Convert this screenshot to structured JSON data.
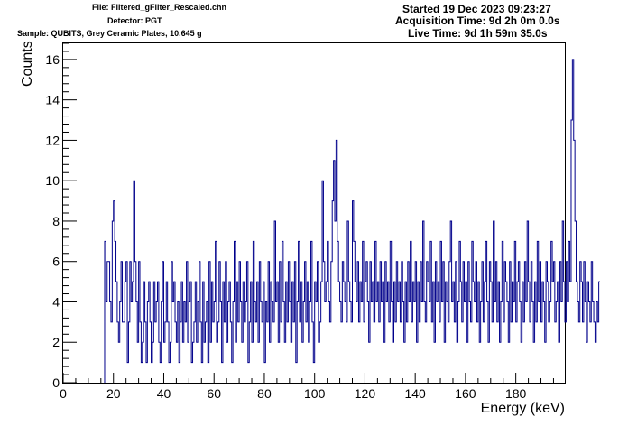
{
  "header": {
    "file": "File: Filtered_gFilter_Rescaled.chn",
    "detector": "Detector: PGT",
    "sample": "Sample: QUBITS, Grey Ceramic Plates, 10.645 g",
    "started": "Started 19 Dec 2023 09:23:27",
    "acquisition": "Acquisition Time: 9d 2h 0m 0.0s",
    "live": "Live Time: 9d 1h 59m 35.0s"
  },
  "chart_data": {
    "type": "line",
    "style": "histogram-step",
    "title": "",
    "xlabel": "Energy (keV)",
    "ylabel": "Counts",
    "xlim": [
      0,
      199.5
    ],
    "ylim": [
      0,
      16.8
    ],
    "x_ticks": [
      0,
      20,
      40,
      60,
      80,
      100,
      120,
      140,
      160,
      180
    ],
    "y_ticks": [
      0,
      2,
      4,
      6,
      8,
      10,
      12,
      14,
      16
    ],
    "grid": false,
    "legend": "none",
    "color": "#00008b",
    "bin_width": 0.5,
    "x_start": 16.5,
    "counts": [
      7,
      4,
      6,
      6,
      4,
      3,
      8,
      9,
      7,
      5,
      3,
      2,
      4,
      6,
      3,
      3,
      5,
      6,
      1,
      3,
      6,
      4,
      5,
      10,
      6,
      4,
      2,
      6,
      3,
      1,
      2,
      5,
      3,
      1,
      4,
      5,
      3,
      1,
      2,
      5,
      3,
      4,
      5,
      2,
      1,
      4,
      6,
      2,
      3,
      5,
      3,
      1,
      2,
      6,
      4,
      5,
      3,
      2,
      4,
      1,
      3,
      5,
      2,
      4,
      3,
      6,
      2,
      4,
      5,
      1,
      2,
      3,
      5,
      2,
      4,
      6,
      3,
      1,
      5,
      2,
      3,
      4,
      1,
      6,
      2,
      5,
      3,
      4,
      7,
      2,
      3,
      6,
      4,
      1,
      5,
      3,
      6,
      2,
      4,
      5,
      3,
      1,
      4,
      7,
      2,
      5,
      3,
      6,
      4,
      2,
      5,
      3,
      4,
      6,
      1,
      3,
      5,
      2,
      7,
      4,
      3,
      5,
      2,
      6,
      4,
      3,
      5,
      1,
      4,
      3,
      6,
      2,
      5,
      4,
      3,
      8,
      4,
      5,
      2,
      6,
      3,
      7,
      4,
      2,
      5,
      3,
      6,
      4,
      2,
      5,
      3,
      6,
      1,
      4,
      7,
      3,
      5,
      2,
      4,
      6,
      3,
      5,
      2,
      4,
      7,
      3,
      1,
      5,
      4,
      6,
      2,
      3,
      5,
      10,
      6,
      4,
      5,
      7,
      4,
      3,
      6,
      9,
      11,
      8,
      12,
      7,
      5,
      4,
      3,
      6,
      5,
      4,
      3,
      8,
      5,
      4,
      3,
      9,
      7,
      5,
      4,
      6,
      3,
      5,
      4,
      7,
      3,
      5,
      6,
      4,
      2,
      6,
      4,
      5,
      3,
      7,
      4,
      5,
      3,
      6,
      4,
      5,
      2,
      6,
      4,
      5,
      3,
      7,
      4,
      2,
      5,
      3,
      6,
      4,
      5,
      3,
      6,
      4,
      2,
      5,
      3,
      6,
      4,
      7,
      3,
      5,
      4,
      6,
      2,
      5,
      3,
      6,
      4,
      8,
      4,
      3,
      6,
      5,
      4,
      7,
      3,
      5,
      2,
      6,
      4,
      5,
      3,
      7,
      4,
      6,
      2,
      5,
      4,
      3,
      6,
      8,
      4,
      5,
      3,
      6,
      2,
      4,
      7,
      5,
      3,
      6,
      4,
      5,
      2,
      6,
      4,
      3,
      7,
      5,
      4,
      6,
      3,
      5,
      2,
      4,
      6,
      3,
      5,
      7,
      4,
      2,
      6,
      5,
      3,
      8,
      4,
      6,
      3,
      5,
      2,
      4,
      7,
      3,
      6,
      5,
      4,
      2,
      6,
      3,
      5,
      4,
      7,
      3,
      5,
      6,
      4,
      2,
      5,
      3,
      6,
      4,
      8,
      5,
      3,
      6,
      4,
      2,
      5,
      3,
      7,
      4,
      6,
      3,
      5,
      4,
      2,
      6,
      5,
      3,
      4,
      7,
      5,
      6,
      3,
      4,
      5,
      2,
      6,
      4,
      8,
      5,
      3,
      6,
      4,
      7,
      5,
      13,
      16,
      12,
      8,
      5,
      4,
      3,
      6,
      5,
      3,
      6,
      4,
      2,
      5,
      4,
      3,
      6,
      4,
      3,
      2,
      4,
      3,
      5
    ]
  }
}
